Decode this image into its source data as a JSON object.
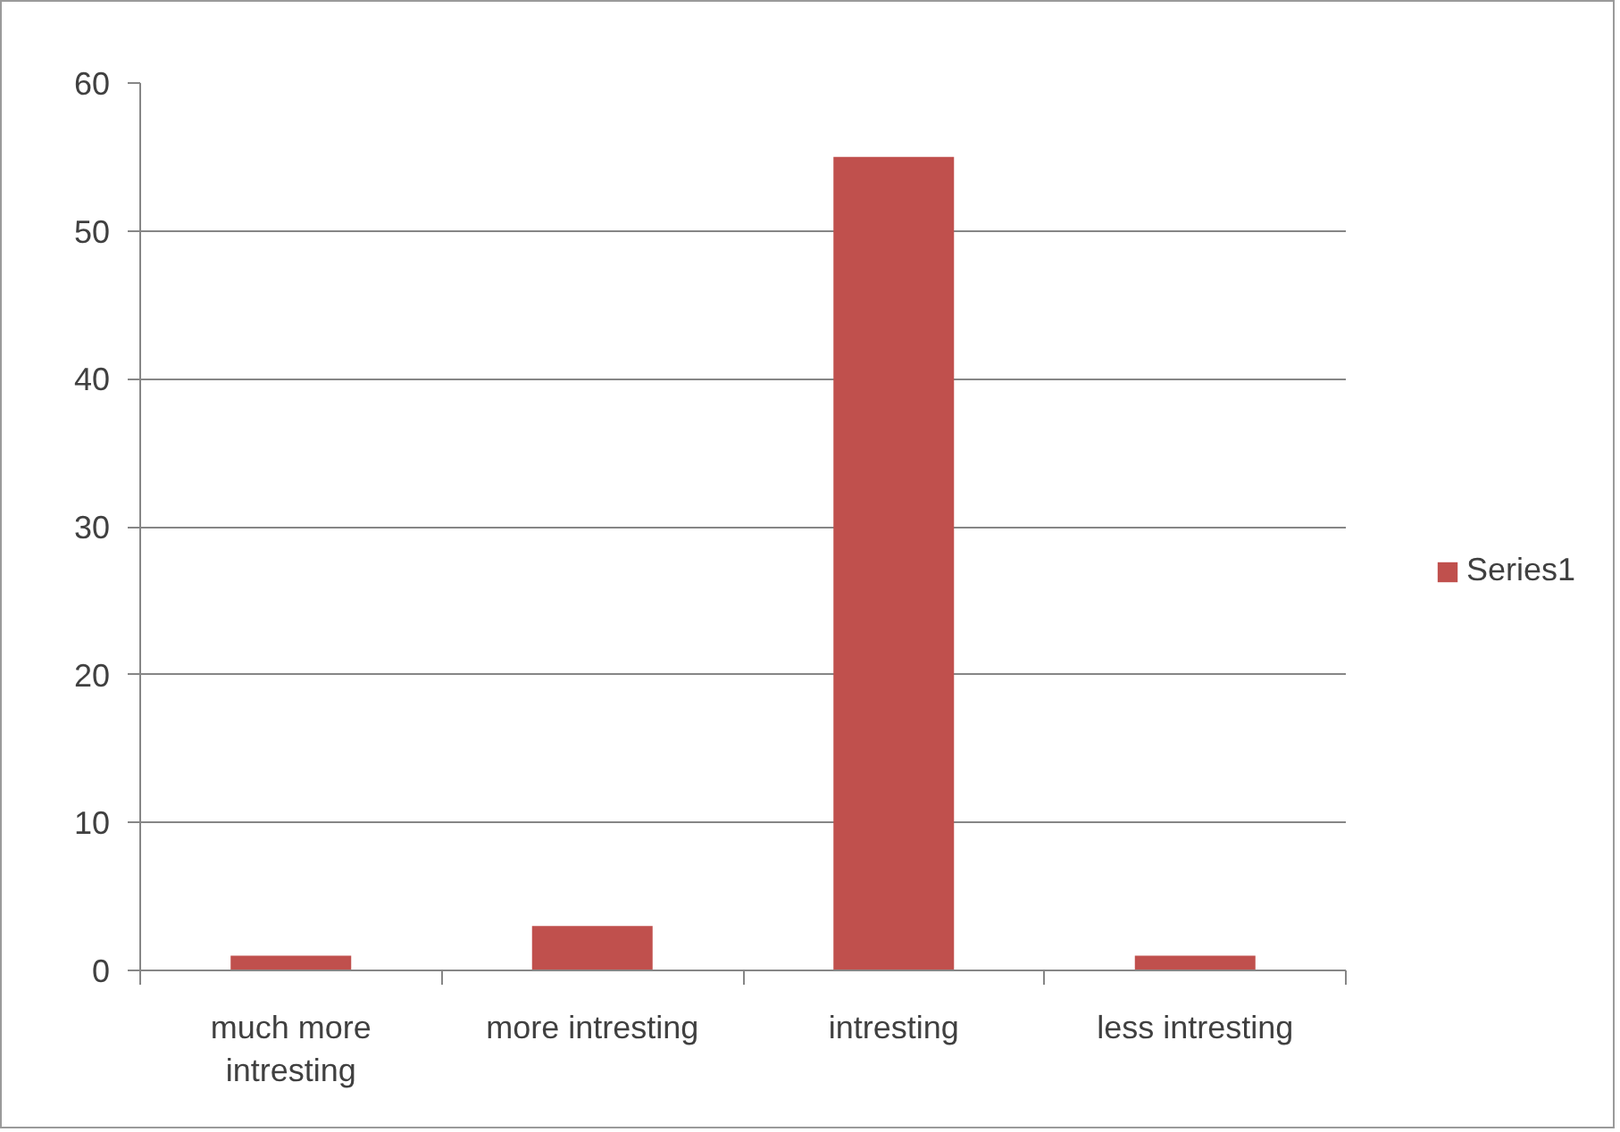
{
  "chart_data": {
    "type": "bar",
    "categories": [
      "much more intresting",
      "more intresting",
      "intresting",
      "less intresting"
    ],
    "series": [
      {
        "name": "Series1",
        "color": "#c0504d",
        "values": [
          1,
          3,
          55,
          1
        ]
      }
    ],
    "ylim": [
      0,
      60
    ],
    "yticks": [
      0,
      10,
      20,
      30,
      40,
      50,
      60
    ],
    "grid": "y",
    "legend": "right"
  }
}
